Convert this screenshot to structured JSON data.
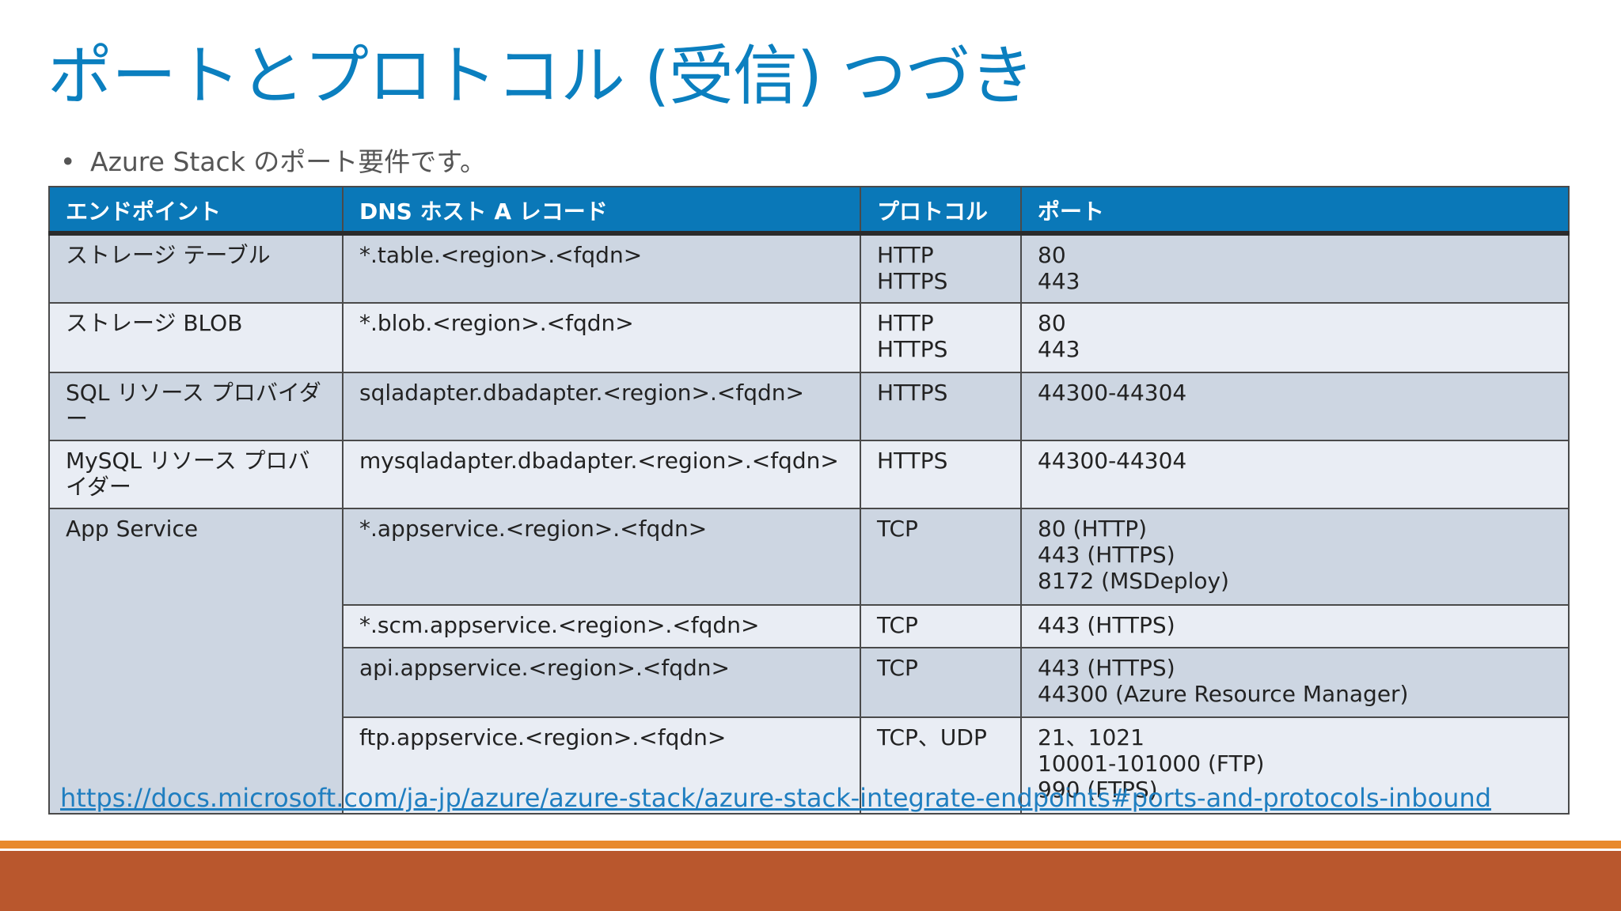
{
  "slide": {
    "title": "ポートとプロトコル (受信) つづき",
    "bullet": "Azure Stack のポート要件です。",
    "link": "https://docs.microsoft.com/ja-jp/azure/azure-stack/azure-stack-integrate-endpoints#ports-and-protocols-inbound"
  },
  "table": {
    "headers": [
      "エンドポイント",
      "DNS ホスト A レコード",
      "プロトコル",
      "ポート"
    ],
    "rows": [
      {
        "endpoint": "ストレージ テーブル",
        "dns": "*.table.<region>.<fqdn>",
        "protocol": [
          "HTTP",
          "HTTPS"
        ],
        "port": [
          "80",
          "443"
        ]
      },
      {
        "endpoint": "ストレージ BLOB",
        "dns": "*.blob.<region>.<fqdn>",
        "protocol": [
          "HTTP",
          "HTTPS"
        ],
        "port": [
          "80",
          "443"
        ]
      },
      {
        "endpoint": "SQL リソース プロバイダー",
        "dns": "sqladapter.dbadapter.<region>.<fqdn>",
        "protocol": [
          "HTTPS"
        ],
        "port": [
          "44300-44304"
        ]
      },
      {
        "endpoint": "MySQL リソース プロバイダー",
        "dns": "mysqladapter.dbadapter.<region>.<fqdn>",
        "protocol": [
          "HTTPS"
        ],
        "port": [
          "44300-44304"
        ]
      },
      {
        "endpoint": "App Service",
        "dns": "*.appservice.<region>.<fqdn>",
        "protocol": [
          "TCP"
        ],
        "port": [
          "80 (HTTP)",
          "443 (HTTPS)",
          "8172 (MSDeploy)"
        ]
      },
      {
        "dns": "*.scm.appservice.<region>.<fqdn>",
        "protocol": [
          "TCP"
        ],
        "port": [
          "443 (HTTPS)"
        ]
      },
      {
        "dns": "api.appservice.<region>.<fqdn>",
        "protocol": [
          "TCP"
        ],
        "port": [
          "443 (HTTPS)",
          "44300 (Azure Resource Manager)"
        ]
      },
      {
        "dns": "ftp.appservice.<region>.<fqdn>",
        "protocol": [
          "TCP、UDP"
        ],
        "port": [
          "21、1021",
          "10001-101000 (FTP)",
          "990 (FTPS)"
        ]
      }
    ]
  },
  "colors": {
    "title": "#0b7fbf",
    "header_bg": "#0a78b8",
    "row_dark": "#cdd6e2",
    "row_light": "#e9edf4",
    "footer_bar": "#b9572d",
    "footer_line": "#e8892c",
    "link": "#1f7ec0"
  }
}
